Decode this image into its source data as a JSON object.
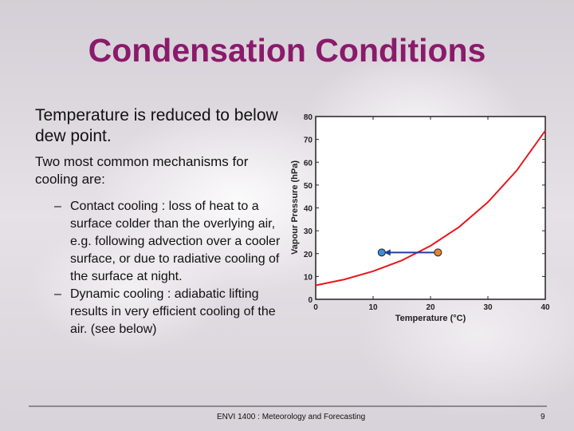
{
  "slide": {
    "title": "Condensation Conditions",
    "bullet1": "Temperature is reduced to below dew point.",
    "bullet2": "Two most common mechanisms for cooling are:",
    "sub_bullets": [
      "Contact cooling : loss of heat to a surface colder than the overlying air, e.g. following advection over a cooler surface, or due to radiative cooling of the surface at night.",
      "Dynamic cooling : adiabatic lifting results in very efficient cooling of the air. (see below)"
    ],
    "dash": "–",
    "footer": "ENVI 1400 : Meteorology and Forecasting",
    "page_number": "9"
  },
  "chart_data": {
    "type": "line",
    "xlabel": "Temperature (°C)",
    "ylabel": "Vapour Pressure (hPa)",
    "xlim": [
      0,
      40
    ],
    "ylim": [
      0,
      80
    ],
    "xticks": [
      0,
      10,
      20,
      30,
      40
    ],
    "yticks": [
      0,
      10,
      20,
      30,
      40,
      50,
      60,
      70,
      80
    ],
    "series": [
      {
        "x": [
          0,
          5,
          10,
          15,
          20,
          25,
          30,
          35,
          40
        ],
        "y": [
          6.1,
          8.7,
          12.3,
          17.0,
          23.4,
          31.7,
          42.5,
          56.3,
          73.8
        ],
        "color": "#e8161c"
      }
    ],
    "points": [
      {
        "x": 11.5,
        "y": 20.5,
        "color": "#3a8fd6"
      },
      {
        "x": 21.3,
        "y": 20.5,
        "color": "#e8823a"
      }
    ],
    "arrow": {
      "from_x": 21.3,
      "to_x": 11.5,
      "y": 20.5,
      "color": "#1f3f9a"
    }
  }
}
